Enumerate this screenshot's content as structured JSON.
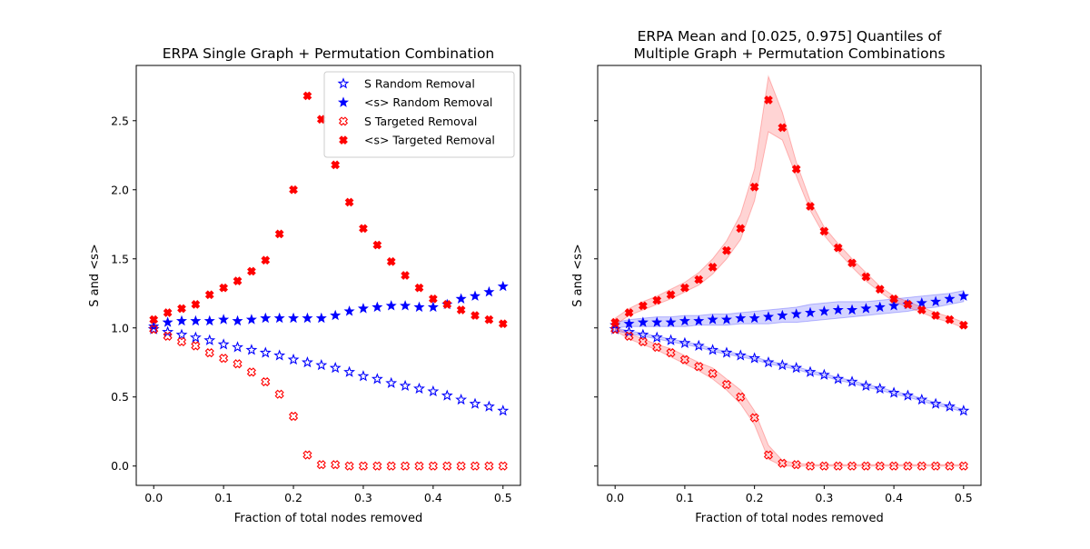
{
  "chart_data": [
    {
      "type": "scatter",
      "title": "ERPA Single Graph + Permutation Combination",
      "xlabel": "Fraction of total nodes removed",
      "ylabel": "S and <s>",
      "xlim": [
        -0.025,
        0.525
      ],
      "ylim": [
        -0.14,
        2.9
      ],
      "xticks": [
        "0.0",
        "0.1",
        "0.2",
        "0.3",
        "0.4",
        "0.5"
      ],
      "yticks": [
        "0.0",
        "0.5",
        "1.0",
        "1.5",
        "2.0",
        "2.5"
      ],
      "legend": {
        "position": "top-right"
      },
      "x": [
        0.0,
        0.02,
        0.04,
        0.06,
        0.08,
        0.1,
        0.12,
        0.14,
        0.16,
        0.18,
        0.2,
        0.22,
        0.24,
        0.26,
        0.28,
        0.3,
        0.32,
        0.34,
        0.36,
        0.38,
        0.4,
        0.42,
        0.44,
        0.46,
        0.48,
        0.5
      ],
      "series": [
        {
          "name": "S Random Removal",
          "marker": "star-open",
          "color": "#0000ff",
          "values": [
            0.99,
            0.97,
            0.95,
            0.93,
            0.91,
            0.88,
            0.86,
            0.84,
            0.82,
            0.8,
            0.77,
            0.75,
            0.73,
            0.71,
            0.68,
            0.65,
            0.63,
            0.6,
            0.58,
            0.56,
            0.54,
            0.51,
            0.48,
            0.45,
            0.43,
            0.4
          ]
        },
        {
          "name": "<s> Random Removal",
          "marker": "star-filled",
          "color": "#0000ff",
          "values": [
            1.01,
            1.04,
            1.05,
            1.05,
            1.05,
            1.06,
            1.05,
            1.06,
            1.07,
            1.07,
            1.07,
            1.07,
            1.07,
            1.09,
            1.12,
            1.14,
            1.15,
            1.16,
            1.16,
            1.15,
            1.15,
            1.17,
            1.21,
            1.23,
            1.26,
            1.3
          ]
        },
        {
          "name": "S Targeted Removal",
          "marker": "x-open",
          "color": "#ff0000",
          "values": [
            0.99,
            0.94,
            0.9,
            0.87,
            0.82,
            0.78,
            0.74,
            0.68,
            0.61,
            0.52,
            0.36,
            0.08,
            0.01,
            0.01,
            0.0,
            0.0,
            0.0,
            0.0,
            0.0,
            0.0,
            0.0,
            0.0,
            0.0,
            0.0,
            0.0,
            0.0
          ]
        },
        {
          "name": "<s> Targeted Removal",
          "marker": "x-filled",
          "color": "#ff0000",
          "values": [
            1.06,
            1.11,
            1.14,
            1.17,
            1.24,
            1.29,
            1.34,
            1.41,
            1.49,
            1.68,
            2.0,
            2.68,
            2.51,
            2.18,
            1.91,
            1.72,
            1.6,
            1.48,
            1.38,
            1.29,
            1.21,
            1.17,
            1.13,
            1.09,
            1.06,
            1.03
          ]
        }
      ]
    },
    {
      "type": "scatter",
      "title": "ERPA Mean and [0.025, 0.975] Quantiles of\nMultiple Graph + Permutation Combinations",
      "xlabel": "Fraction of total nodes removed",
      "ylabel": "S and <s>",
      "xlim": [
        -0.025,
        0.525
      ],
      "ylim": [
        -0.14,
        2.9
      ],
      "xticks": [
        "0.0",
        "0.1",
        "0.2",
        "0.3",
        "0.4",
        "0.5"
      ],
      "yticks_shared": true,
      "x": [
        0.0,
        0.02,
        0.04,
        0.06,
        0.08,
        0.1,
        0.12,
        0.14,
        0.16,
        0.18,
        0.2,
        0.22,
        0.24,
        0.26,
        0.28,
        0.3,
        0.32,
        0.34,
        0.36,
        0.38,
        0.4,
        0.42,
        0.44,
        0.46,
        0.48,
        0.5
      ],
      "series": [
        {
          "marker": "star-open",
          "color": "#0000ff",
          "values": [
            0.99,
            0.97,
            0.95,
            0.93,
            0.91,
            0.89,
            0.87,
            0.84,
            0.82,
            0.8,
            0.78,
            0.75,
            0.73,
            0.71,
            0.68,
            0.66,
            0.63,
            0.61,
            0.58,
            0.56,
            0.53,
            0.51,
            0.48,
            0.45,
            0.43,
            0.4
          ],
          "band_lower": [
            0.98,
            0.96,
            0.94,
            0.92,
            0.9,
            0.88,
            0.86,
            0.83,
            0.81,
            0.79,
            0.77,
            0.74,
            0.72,
            0.7,
            0.67,
            0.65,
            0.62,
            0.6,
            0.57,
            0.55,
            0.52,
            0.5,
            0.47,
            0.44,
            0.42,
            0.39
          ],
          "band_upper": [
            1.0,
            0.98,
            0.96,
            0.94,
            0.92,
            0.9,
            0.88,
            0.85,
            0.83,
            0.81,
            0.79,
            0.76,
            0.74,
            0.72,
            0.69,
            0.67,
            0.64,
            0.62,
            0.59,
            0.57,
            0.54,
            0.52,
            0.49,
            0.46,
            0.44,
            0.41
          ]
        },
        {
          "marker": "star-filled",
          "color": "#0000ff",
          "values": [
            1.02,
            1.03,
            1.04,
            1.04,
            1.04,
            1.05,
            1.05,
            1.06,
            1.06,
            1.07,
            1.07,
            1.08,
            1.09,
            1.1,
            1.11,
            1.12,
            1.13,
            1.13,
            1.14,
            1.15,
            1.16,
            1.17,
            1.18,
            1.19,
            1.21,
            1.23
          ],
          "band_lower": [
            1.0,
            1.01,
            1.01,
            1.01,
            1.01,
            1.01,
            1.02,
            1.02,
            1.02,
            1.03,
            1.03,
            1.03,
            1.04,
            1.04,
            1.05,
            1.06,
            1.07,
            1.08,
            1.09,
            1.1,
            1.11,
            1.12,
            1.14,
            1.15,
            1.17,
            1.19
          ],
          "band_upper": [
            1.04,
            1.06,
            1.07,
            1.08,
            1.08,
            1.09,
            1.09,
            1.1,
            1.1,
            1.11,
            1.12,
            1.13,
            1.14,
            1.15,
            1.17,
            1.18,
            1.19,
            1.19,
            1.19,
            1.2,
            1.21,
            1.22,
            1.23,
            1.24,
            1.25,
            1.27
          ]
        },
        {
          "marker": "x-open",
          "color": "#ff0000",
          "values": [
            0.99,
            0.94,
            0.9,
            0.86,
            0.82,
            0.77,
            0.72,
            0.67,
            0.59,
            0.5,
            0.35,
            0.08,
            0.02,
            0.01,
            0.0,
            0.0,
            0.0,
            0.0,
            0.0,
            0.0,
            0.0,
            0.0,
            0.0,
            0.0,
            0.0,
            0.0
          ],
          "band_lower": [
            0.98,
            0.92,
            0.88,
            0.84,
            0.79,
            0.74,
            0.69,
            0.63,
            0.55,
            0.45,
            0.3,
            0.05,
            0.0,
            0.0,
            0.0,
            0.0,
            0.0,
            0.0,
            0.0,
            0.0,
            0.0,
            0.0,
            0.0,
            0.0,
            0.0,
            0.0
          ],
          "band_upper": [
            1.0,
            0.96,
            0.92,
            0.88,
            0.85,
            0.8,
            0.75,
            0.71,
            0.63,
            0.55,
            0.4,
            0.15,
            0.04,
            0.02,
            0.01,
            0.01,
            0.01,
            0.01,
            0.01,
            0.01,
            0.01,
            0.01,
            0.01,
            0.01,
            0.01,
            0.01
          ]
        },
        {
          "marker": "x-filled",
          "color": "#ff0000",
          "values": [
            1.04,
            1.11,
            1.16,
            1.2,
            1.24,
            1.29,
            1.35,
            1.44,
            1.56,
            1.72,
            2.02,
            2.65,
            2.45,
            2.15,
            1.88,
            1.7,
            1.58,
            1.47,
            1.37,
            1.28,
            1.21,
            1.17,
            1.13,
            1.09,
            1.06,
            1.02
          ],
          "band_lower": [
            1.02,
            1.09,
            1.13,
            1.17,
            1.21,
            1.26,
            1.31,
            1.39,
            1.5,
            1.64,
            1.92,
            2.42,
            2.36,
            2.1,
            1.85,
            1.67,
            1.55,
            1.44,
            1.34,
            1.26,
            1.19,
            1.15,
            1.11,
            1.07,
            1.04,
            1.0
          ],
          "band_upper": [
            1.07,
            1.14,
            1.19,
            1.23,
            1.28,
            1.33,
            1.4,
            1.5,
            1.63,
            1.82,
            2.15,
            2.82,
            2.56,
            2.2,
            1.92,
            1.73,
            1.61,
            1.5,
            1.4,
            1.3,
            1.23,
            1.19,
            1.15,
            1.11,
            1.08,
            1.04
          ]
        }
      ]
    }
  ]
}
